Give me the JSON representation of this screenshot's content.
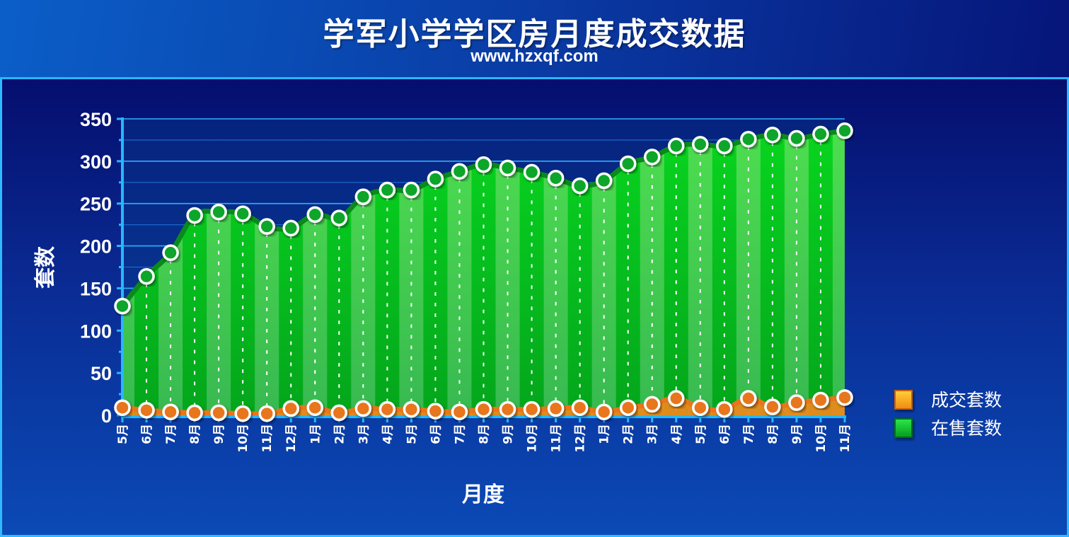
{
  "header": {
    "title": "学军小学学区房月度成交数据",
    "subtitle": "www.hzxqf.com"
  },
  "colors": {
    "sold_line": "#e8761a",
    "sold_fill": "#f4a13a",
    "listed_line": "#0a8a1c",
    "listed_fill_light": "#4fdc50",
    "listed_fill_dark": "#06b91e",
    "grid": "#2aa4ff"
  },
  "chart_data": {
    "type": "area",
    "title": "学军小学学区房月度成交数据",
    "xlabel": "月度",
    "ylabel": "套数",
    "ylim": [
      0,
      350
    ],
    "yticks": [
      0,
      50,
      100,
      150,
      200,
      250,
      300,
      350
    ],
    "grid": true,
    "legend_position": "right",
    "categories": [
      "5月",
      "6月",
      "7月",
      "8月",
      "9月",
      "10月",
      "11月",
      "12月",
      "1月",
      "2月",
      "3月",
      "4月",
      "5月",
      "6月",
      "7月",
      "8月",
      "9月",
      "10月",
      "11月",
      "12月",
      "1月",
      "2月",
      "3月",
      "4月",
      "5月",
      "6月",
      "7月",
      "8月",
      "9月",
      "10月",
      "11月"
    ],
    "series": [
      {
        "name": "成交套数",
        "values": [
          9,
          6,
          4,
          3,
          3,
          2,
          2,
          8,
          9,
          3,
          8,
          7,
          7,
          5,
          4,
          7,
          7,
          7,
          8,
          9,
          4,
          9,
          13,
          20,
          9,
          7,
          20,
          10,
          15,
          18,
          21
        ]
      },
      {
        "name": "在售套数",
        "values": [
          129,
          164,
          192,
          236,
          240,
          238,
          223,
          221,
          237,
          233,
          258,
          266,
          266,
          279,
          288,
          296,
          292,
          287,
          280,
          271,
          277,
          297,
          305,
          318,
          320,
          318,
          326,
          331,
          327,
          332,
          336
        ]
      }
    ]
  }
}
